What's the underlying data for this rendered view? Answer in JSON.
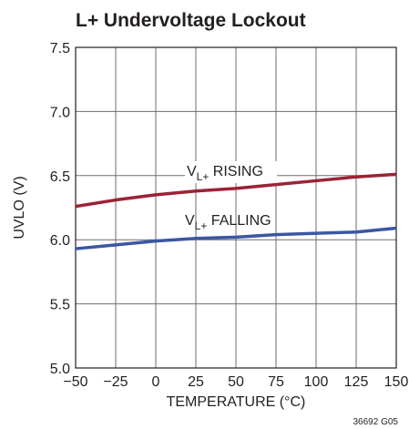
{
  "chart_data": {
    "type": "line",
    "title": "L+ Undervoltage Lockout",
    "xlabel": "TEMPERATURE (°C)",
    "ylabel": "UVLO (V)",
    "note": "36692 G05",
    "x": [
      -50,
      -25,
      0,
      25,
      50,
      75,
      100,
      125,
      150
    ],
    "series": [
      {
        "label": [
          "V",
          "L+",
          " RISING"
        ],
        "color": "#9b2335",
        "values": [
          6.26,
          6.31,
          6.35,
          6.38,
          6.4,
          6.43,
          6.46,
          6.49,
          6.51
        ]
      },
      {
        "label": [
          "V",
          "L+",
          " FALLING"
        ],
        "color": "#3b56a3",
        "values": [
          5.93,
          5.96,
          5.99,
          6.01,
          6.02,
          6.04,
          6.05,
          6.06,
          6.09
        ]
      }
    ],
    "xlim": [
      -50,
      150
    ],
    "xticks": [
      {
        "value": -50,
        "label": "−50"
      },
      {
        "value": -25,
        "label": "−25"
      },
      0,
      25,
      50,
      75,
      100,
      125,
      150
    ],
    "ylim": [
      5,
      7.5
    ],
    "yticks": [
      {
        "value": 5,
        "label": "5.0"
      },
      5.5,
      {
        "value": 6,
        "label": "6.0"
      },
      6.5,
      {
        "value": 7,
        "label": "7.0"
      },
      7.5
    ],
    "grid": true
  }
}
